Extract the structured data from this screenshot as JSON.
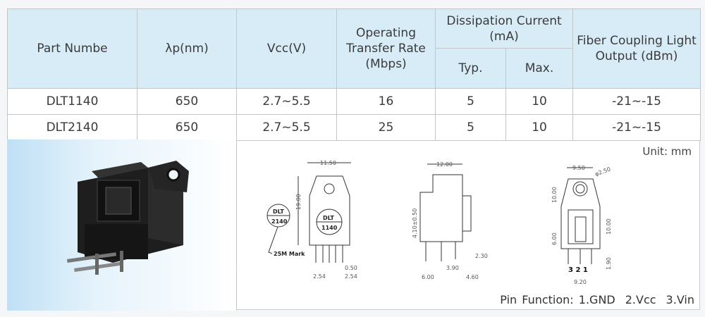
{
  "table": {
    "headers": {
      "part": "Part Numbe",
      "wavelength": "λp(nm)",
      "vcc": "Vcc(V)",
      "rate": "Operating Transfer Rate (Mbps)",
      "current": "Dissipation Current (mA)",
      "typ": "Typ.",
      "max": "Max.",
      "output": "Fiber Coupling Light Output (dBm)"
    },
    "rows": [
      {
        "part": "DLT1140",
        "wavelength": "650",
        "vcc": "2.7~5.5",
        "rate": "16",
        "typ": "5",
        "max": "10",
        "output": "-21~-15"
      },
      {
        "part": "DLT2140",
        "wavelength": "650",
        "vcc": "2.7~5.5",
        "rate": "25",
        "typ": "5",
        "max": "10",
        "output": "-21~-15"
      }
    ]
  },
  "drawing": {
    "unit": "Unit:  mm",
    "pin_function": {
      "label": "Pin Function: 1.GND",
      "pin2": "2.Vcc",
      "pin3": "3.Vin"
    },
    "front": {
      "width": "11.50",
      "height": "19.00",
      "mark_top": "DLT",
      "mark_bottom": "1140",
      "alt_top": "DLT",
      "alt_bottom": "2140",
      "mark_note": "25M Mark",
      "pin_w": "0.50",
      "pitch_l": "2.54",
      "pitch_r": "2.54"
    },
    "side": {
      "width": "12.00",
      "height": "4.10±0.50",
      "d1": "2.30",
      "d2": "3.90",
      "d3": "6.00",
      "d4": "4.60"
    },
    "back": {
      "width": "9.50",
      "hole": "φ2.50",
      "h1": "10.00",
      "h2": "10.00",
      "h3": "6.00",
      "h4": "1.90",
      "pins": "3 2 1",
      "bottom": "9.20"
    }
  },
  "colors": {
    "header_bg": "#d8ecf8",
    "photo_gradient": "#bfe0f5"
  }
}
